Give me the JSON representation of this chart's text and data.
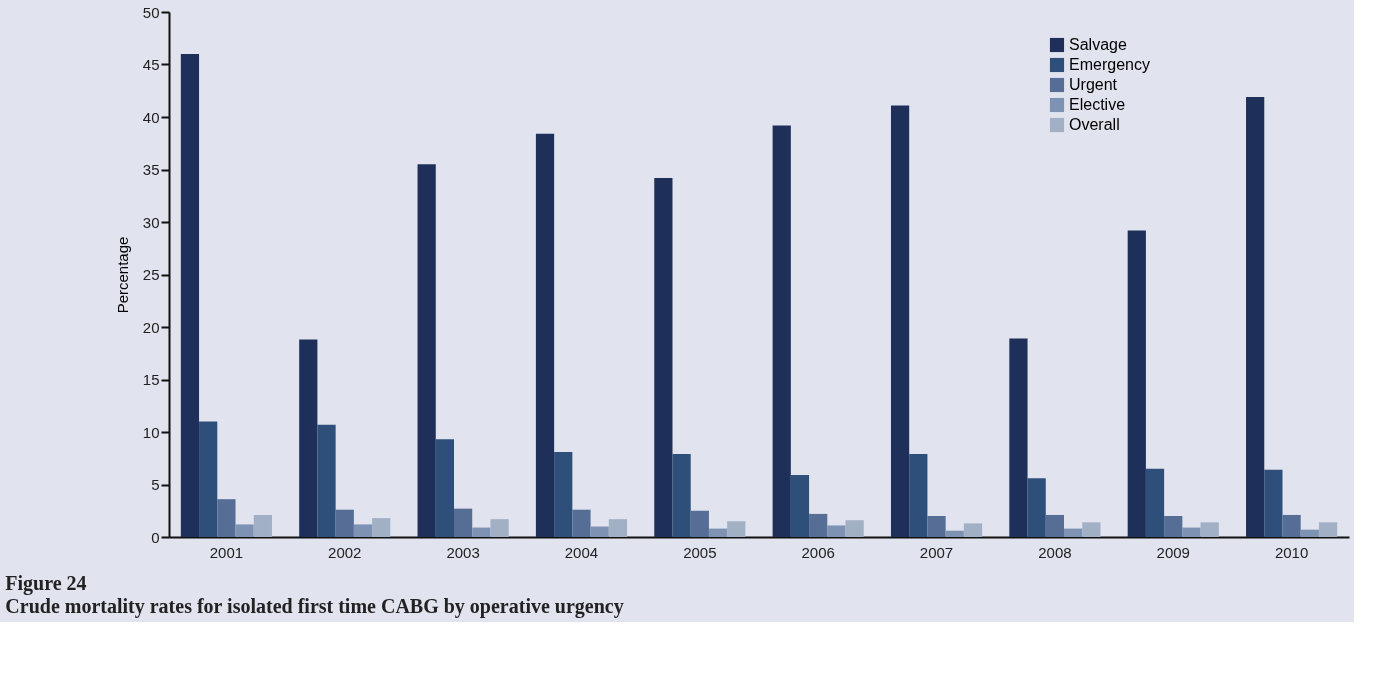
{
  "chart_data": {
    "type": "bar",
    "title": "Figure 24",
    "subtitle": "Crude mortality rates for isolated first time CABG by operative urgency",
    "ylabel": "Percentage",
    "categories": [
      "2001",
      "2002",
      "2003",
      "2004",
      "2005",
      "2006",
      "2007",
      "2008",
      "2009",
      "2010"
    ],
    "series": [
      {
        "name": "Salvage",
        "color": "#1e3059",
        "values": [
          46.0,
          18.8,
          35.5,
          38.4,
          34.2,
          39.2,
          41.1,
          18.9,
          29.2,
          41.9
        ]
      },
      {
        "name": "Emergency",
        "color": "#2e4f7a",
        "values": [
          11.0,
          10.7,
          9.3,
          8.1,
          7.9,
          5.9,
          7.9,
          5.6,
          6.5,
          6.4
        ]
      },
      {
        "name": "Urgent",
        "color": "#566e96",
        "values": [
          3.6,
          2.6,
          2.7,
          2.6,
          2.5,
          2.2,
          2.0,
          2.1,
          2.0,
          2.1
        ]
      },
      {
        "name": "Elective",
        "color": "#7e93b3",
        "values": [
          1.2,
          1.2,
          0.9,
          1.0,
          0.8,
          1.1,
          0.6,
          0.8,
          0.9,
          0.7
        ]
      },
      {
        "name": "Overall",
        "color": "#a2b0c6",
        "values": [
          2.1,
          1.8,
          1.7,
          1.7,
          1.5,
          1.6,
          1.3,
          1.4,
          1.4,
          1.4
        ]
      }
    ],
    "ylim": [
      0,
      50
    ],
    "yticks": [
      0,
      5,
      10,
      15,
      20,
      25,
      30,
      35,
      40,
      45,
      50
    ],
    "grid": false,
    "legend": "top right"
  }
}
